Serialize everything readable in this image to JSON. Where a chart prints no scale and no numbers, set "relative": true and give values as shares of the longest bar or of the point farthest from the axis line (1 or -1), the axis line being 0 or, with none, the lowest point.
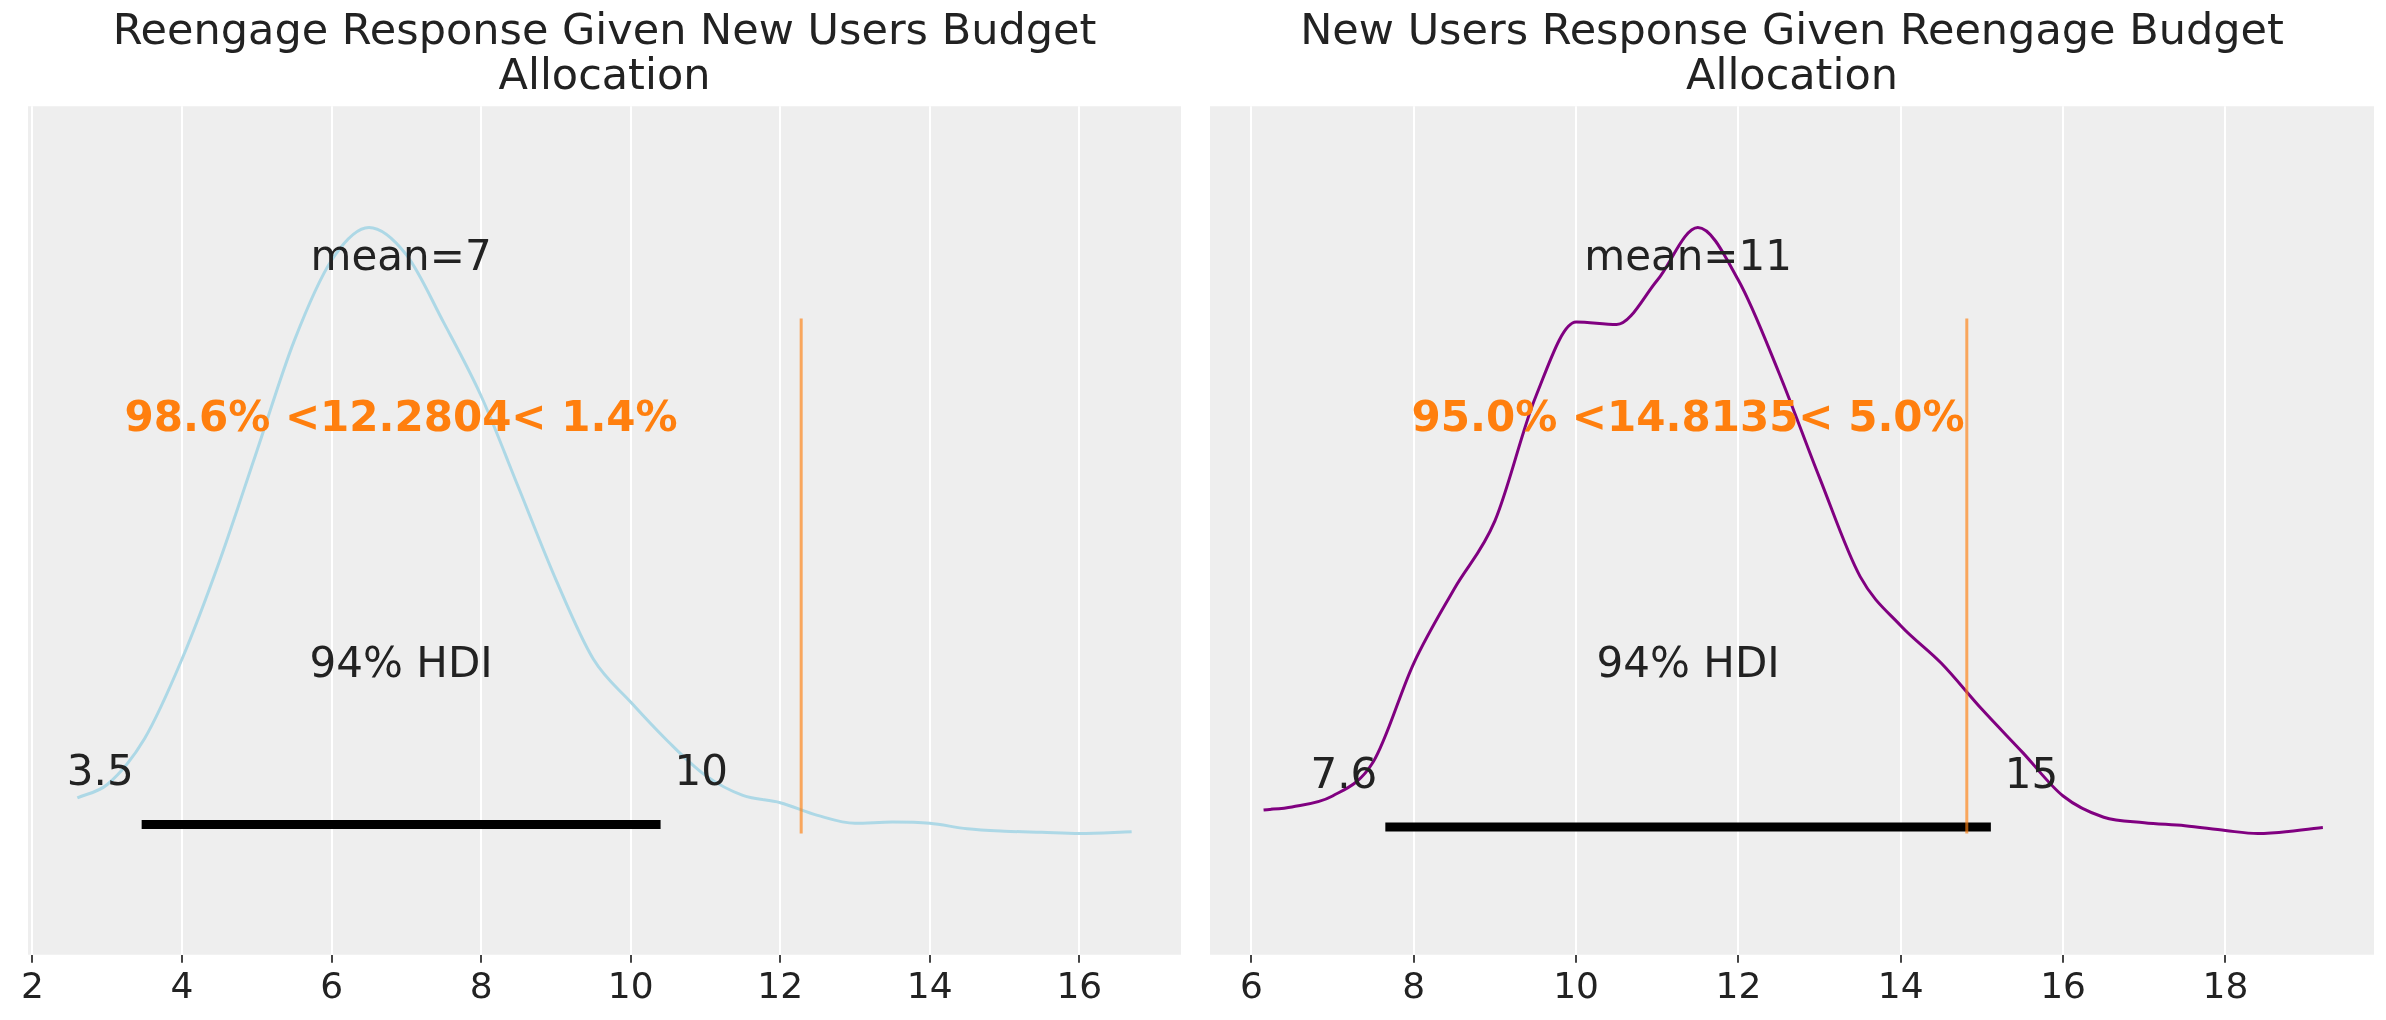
{
  "chart_data": [
    {
      "type": "line",
      "title": "Reengage Response Given New Users Budget Allocation",
      "relative": true,
      "marker": "none",
      "grid": "x",
      "x": [
        2.6,
        3.0,
        3.5,
        4.0,
        4.5,
        5.0,
        5.5,
        6.0,
        6.5,
        7.0,
        7.5,
        8.0,
        8.5,
        9.0,
        9.5,
        10.0,
        10.5,
        11.0,
        11.5,
        12.0,
        12.5,
        13.0,
        13.5,
        14.0,
        14.5,
        15.0,
        15.5,
        16.0,
        16.7
      ],
      "series": [
        {
          "color": "#add8e6",
          "values": [
            0.059,
            0.081,
            0.157,
            0.288,
            0.449,
            0.631,
            0.813,
            0.946,
            1.0,
            0.955,
            0.843,
            0.722,
            0.571,
            0.419,
            0.288,
            0.217,
            0.152,
            0.096,
            0.063,
            0.051,
            0.03,
            0.017,
            0.019,
            0.017,
            0.008,
            0.004,
            0.002,
            0,
            0.003
          ]
        },
        {
          "color": "#000000",
          "x": [
            3.46,
            10.4
          ],
          "values": [
            0.015,
            0.015
          ]
        }
      ],
      "xlim": [
        1.94,
        17.36
      ],
      "xticks": [
        2,
        4,
        6,
        8,
        10,
        12,
        14,
        16
      ],
      "ref_lines": [
        {
          "axis": "x",
          "value": 12.2804,
          "label": "98.6% <12.2804< 1.4%",
          "color": "#ff7f0e"
        }
      ],
      "annotations": [
        "mean=7",
        "94% HDI",
        {
          "text": "3.5",
          "x": 3.46,
          "y": 0.015
        },
        {
          "text": "10",
          "x": 10.4,
          "y": 0.015
        }
      ]
    },
    {
      "type": "line",
      "title": "New Users Response Given Reengage Budget Allocation",
      "relative": true,
      "marker": "none",
      "grid": "x",
      "x": [
        6.15,
        6.5,
        7.0,
        7.5,
        8.0,
        8.5,
        9.0,
        9.5,
        10.0,
        10.5,
        11.0,
        11.5,
        12.0,
        12.5,
        13.0,
        13.5,
        14.0,
        14.5,
        15.0,
        15.5,
        16.0,
        16.5,
        17.0,
        17.5,
        18.0,
        18.4,
        19.2
      ],
      "series": [
        {
          "color": "#800080",
          "values": [
            0.039,
            0.044,
            0.062,
            0.118,
            0.281,
            0.404,
            0.516,
            0.72,
            0.844,
            0.84,
            0.913,
            1.0,
            0.913,
            0.76,
            0.587,
            0.424,
            0.343,
            0.281,
            0.205,
            0.134,
            0.062,
            0.027,
            0.018,
            0.013,
            0.005,
            0,
            0.01
          ]
        },
        {
          "color": "#000000",
          "x": [
            7.65,
            15.11
          ],
          "values": [
            0.011,
            0.011
          ]
        }
      ],
      "xlim": [
        5.49,
        19.83
      ],
      "xticks": [
        6,
        8,
        10,
        12,
        14,
        16,
        18
      ],
      "ref_lines": [
        {
          "axis": "x",
          "value": 14.8135,
          "label": "95.0% <14.8135< 5.0%",
          "color": "#ff7f0e"
        }
      ],
      "annotations": [
        "mean=11",
        "94% HDI",
        {
          "text": "7.6",
          "x": 7.65,
          "y": 0.011
        },
        {
          "text": "15",
          "x": 15.11,
          "y": 0.011
        }
      ]
    }
  ]
}
